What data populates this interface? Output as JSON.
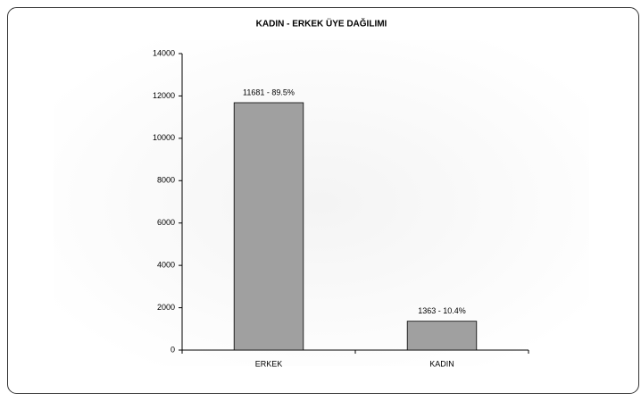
{
  "chart_data": {
    "type": "bar",
    "title": "KADIN - ERKEK ÜYE DAĞILIMI",
    "categories": [
      "ERKEK",
      "KADIN"
    ],
    "values": [
      11681,
      1363
    ],
    "value_labels": [
      "11681 - 89.5%",
      "1363 - 10.4%"
    ],
    "color": "#a0a0a0",
    "ylim": [
      0,
      14000
    ],
    "yticks": [
      0,
      2000,
      4000,
      6000,
      8000,
      10000,
      12000,
      14000
    ]
  }
}
